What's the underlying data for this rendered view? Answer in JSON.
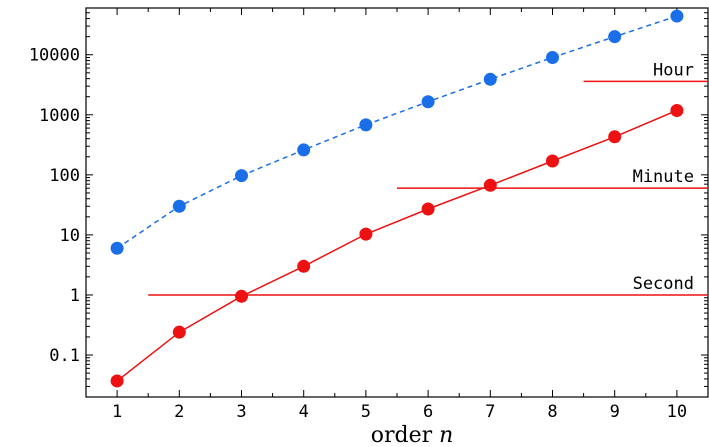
{
  "chart_data": {
    "type": "scatter",
    "xlabel": "order",
    "xlabel_var": "n",
    "x": [
      1,
      2,
      3,
      4,
      5,
      6,
      7,
      8,
      9,
      10
    ],
    "xlim": [
      0.5,
      10.5
    ],
    "ylim": [
      0.02,
      60000
    ],
    "yscale": "log",
    "x_ticks": [
      1,
      2,
      3,
      4,
      5,
      6,
      7,
      8,
      9,
      10
    ],
    "y_ticks": [
      0.1,
      1,
      10,
      100,
      1000,
      10000
    ],
    "y_tick_labels": [
      "0.1",
      "1",
      "10",
      "100",
      "1000",
      "10000"
    ],
    "grid": false,
    "series": [
      {
        "color": "#1a6fe8",
        "line_style": "dashed",
        "values": [
          6,
          30,
          97,
          260,
          680,
          1650,
          3900,
          9000,
          20000,
          44000
        ]
      },
      {
        "color": "#ee1111",
        "line_style": "solid",
        "values": [
          0.037,
          0.24,
          0.95,
          3.0,
          10.3,
          27,
          67,
          170,
          430,
          1180
        ]
      }
    ],
    "reference_lines": [
      {
        "label": "Second",
        "y": 1,
        "x_start": 1.5,
        "x_end": 10.5,
        "color": "#ee1111"
      },
      {
        "label": "Minute",
        "y": 60,
        "x_start": 5.5,
        "x_end": 10.5,
        "color": "#ee1111"
      },
      {
        "label": "Hour",
        "y": 3600,
        "x_start": 8.5,
        "x_end": 10.5,
        "color": "#ee1111"
      }
    ]
  }
}
